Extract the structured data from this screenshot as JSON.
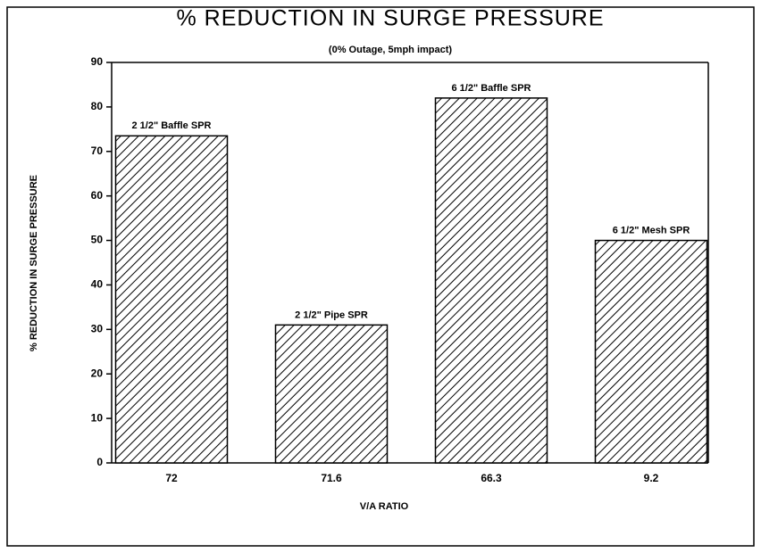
{
  "chart_data": {
    "type": "bar",
    "title": "% REDUCTION IN SURGE PRESSURE",
    "subtitle": "(0% Outage, 5mph impact)",
    "x_label": "V/A RATIO",
    "y_label": "% REDUCTION IN SURGE PRESSURE",
    "categories": [
      "72",
      "71.6",
      "66.3",
      "9.2"
    ],
    "values": [
      73.5,
      31,
      82,
      50
    ],
    "annotations": [
      "2 1/2\" Baffle SPR",
      "2 1/2\" Pipe SPR",
      "6 1/2\" Baffle SPR",
      "6 1/2\" Mesh SPR"
    ],
    "color": "#000000",
    "hatch": true,
    "ylim": [
      0,
      90
    ],
    "yticks": [
      0,
      10,
      20,
      30,
      40,
      50,
      60,
      70,
      80,
      90
    ],
    "grid": false
  }
}
